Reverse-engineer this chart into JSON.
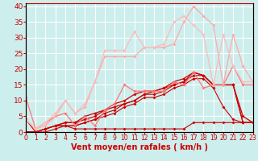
{
  "xlabel": "Vent moyen/en rafales ( km/h )",
  "background_color": "#cceeed",
  "grid_color": "#aadddd",
  "xlim": [
    0,
    23
  ],
  "ylim": [
    0,
    41
  ],
  "xticks": [
    0,
    1,
    2,
    3,
    4,
    5,
    6,
    7,
    8,
    9,
    10,
    11,
    12,
    13,
    14,
    15,
    16,
    17,
    18,
    19,
    20,
    21,
    22,
    23
  ],
  "yticks": [
    0,
    5,
    10,
    15,
    20,
    25,
    30,
    35,
    40
  ],
  "lines": [
    {
      "x": [
        0,
        1,
        2,
        3,
        4,
        5,
        6,
        7,
        8,
        9,
        10,
        11,
        12,
        13,
        14,
        15,
        16,
        17,
        18,
        19,
        20,
        21,
        22,
        23
      ],
      "y": [
        4,
        0,
        0,
        1,
        2,
        1,
        1,
        1,
        1,
        1,
        1,
        1,
        1,
        1,
        1,
        1,
        1,
        3,
        3,
        3,
        3,
        3,
        3,
        3
      ],
      "color": "#cc0000",
      "lw": 0.8,
      "ms": 2.0
    },
    {
      "x": [
        0,
        1,
        2,
        3,
        4,
        5,
        6,
        7,
        8,
        9,
        10,
        11,
        12,
        13,
        14,
        15,
        16,
        17,
        18,
        19,
        20,
        21,
        22,
        23
      ],
      "y": [
        0,
        0,
        1,
        2,
        2,
        2,
        3,
        4,
        5,
        6,
        8,
        9,
        11,
        11,
        12,
        14,
        15,
        17,
        17,
        14,
        8,
        4,
        3,
        3
      ],
      "color": "#cc0000",
      "lw": 0.8,
      "ms": 2.0
    },
    {
      "x": [
        0,
        1,
        2,
        3,
        4,
        5,
        6,
        7,
        8,
        9,
        10,
        11,
        12,
        13,
        14,
        15,
        16,
        17,
        18,
        19,
        20,
        21,
        22,
        23
      ],
      "y": [
        0,
        0,
        1,
        2,
        2,
        2,
        3,
        4,
        6,
        7,
        9,
        10,
        12,
        12,
        13,
        15,
        16,
        18,
        18,
        15,
        15,
        15,
        3,
        3
      ],
      "color": "#cc0000",
      "lw": 0.8,
      "ms": 2.0
    },
    {
      "x": [
        0,
        1,
        2,
        3,
        4,
        5,
        6,
        7,
        8,
        9,
        10,
        11,
        12,
        13,
        14,
        15,
        16,
        17,
        18,
        19,
        20,
        21,
        22,
        23
      ],
      "y": [
        0,
        0,
        1,
        2,
        3,
        3,
        4,
        5,
        7,
        8,
        9,
        10,
        12,
        13,
        14,
        15,
        16,
        19,
        18,
        15,
        15,
        15,
        3,
        3
      ],
      "color": "#cc0000",
      "lw": 0.9,
      "ms": 2.0
    },
    {
      "x": [
        0,
        1,
        2,
        3,
        4,
        5,
        6,
        7,
        8,
        9,
        10,
        11,
        12,
        13,
        14,
        15,
        16,
        17,
        18,
        19,
        20,
        21,
        22,
        23
      ],
      "y": [
        0,
        0,
        1,
        2,
        3,
        3,
        5,
        6,
        7,
        9,
        10,
        12,
        13,
        13,
        14,
        16,
        17,
        19,
        18,
        15,
        15,
        15,
        5,
        3
      ],
      "color": "#cc0000",
      "lw": 0.9,
      "ms": 2.0
    },
    {
      "x": [
        0,
        1,
        2,
        3,
        4,
        5,
        6,
        7,
        8,
        9,
        10,
        11,
        12,
        13,
        14,
        15,
        16,
        17,
        18,
        19,
        20,
        21,
        22,
        23
      ],
      "y": [
        11,
        1,
        3,
        5,
        6,
        2,
        5,
        2,
        7,
        9,
        15,
        13,
        13,
        13,
        13,
        16,
        15,
        19,
        14,
        15,
        15,
        21,
        15,
        15
      ],
      "color": "#ff7777",
      "lw": 0.9,
      "ms": 2.0
    },
    {
      "x": [
        0,
        1,
        2,
        3,
        4,
        5,
        6,
        7,
        8,
        9,
        10,
        11,
        12,
        13,
        14,
        15,
        16,
        17,
        18,
        19,
        20,
        21,
        22,
        23
      ],
      "y": [
        4,
        1,
        2,
        5,
        10,
        6,
        8,
        16,
        24,
        24,
        24,
        24,
        27,
        27,
        27,
        28,
        35,
        40,
        37,
        34,
        15,
        31,
        21,
        16
      ],
      "color": "#ffaaaa",
      "lw": 0.9,
      "ms": 2.0
    },
    {
      "x": [
        0,
        1,
        2,
        3,
        4,
        5,
        6,
        7,
        8,
        9,
        10,
        11,
        12,
        13,
        14,
        15,
        16,
        17,
        18,
        19,
        20,
        21,
        22,
        23
      ],
      "y": [
        4,
        1,
        3,
        6,
        10,
        6,
        9,
        16,
        26,
        26,
        26,
        32,
        27,
        27,
        28,
        35,
        37,
        34,
        31,
        15,
        31,
        21,
        16,
        16
      ],
      "color": "#ffbbbb",
      "lw": 0.9,
      "ms": 2.0
    }
  ],
  "axis_color": "#cc0000",
  "tick_color": "#cc0000",
  "label_color": "#cc0000",
  "xlabel_fontsize": 7.0,
  "tick_fontsize_x": 5.5,
  "tick_fontsize_y": 6.5
}
